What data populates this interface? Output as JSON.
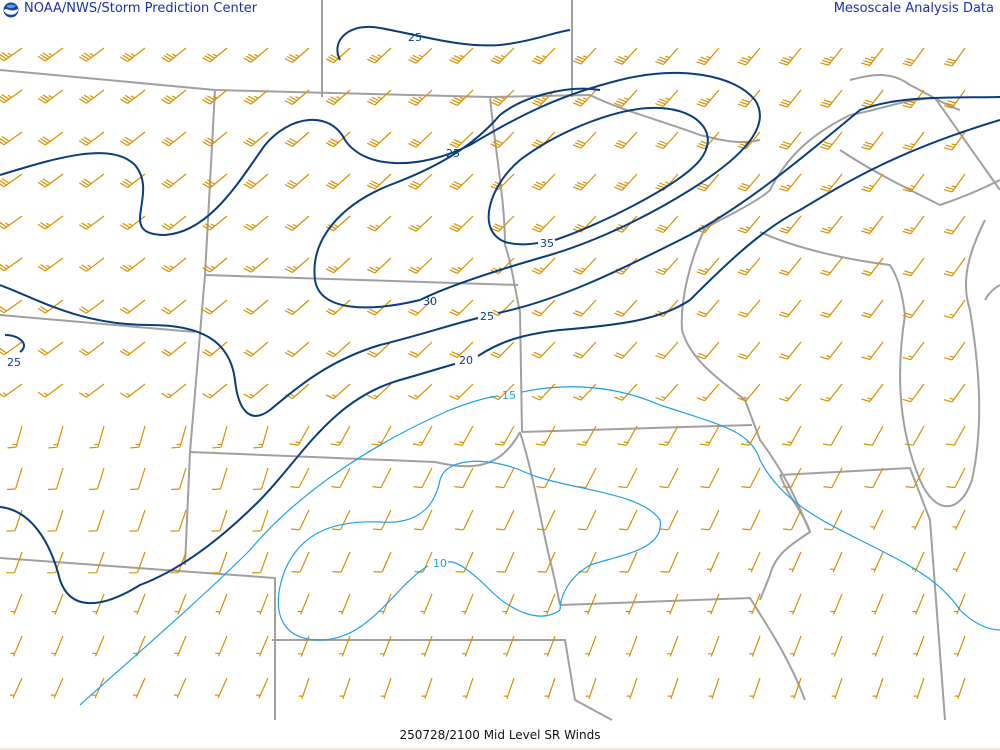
{
  "header": {
    "left_title": "NOAA/NWS/Storm Prediction Center",
    "right_title": "Mesoscale Analysis Data",
    "logo": "noaa-logo"
  },
  "footer": {
    "caption": "250728/2100 Mid Level SR Winds"
  },
  "map": {
    "contour_labels": [
      "25",
      "25",
      "35",
      "30",
      "25",
      "20",
      "15",
      "10",
      "25"
    ],
    "colors": {
      "barbs": "#d89000",
      "strong_isotachs": "#0a3d7a",
      "weak_isotachs": "#1fa0e8",
      "borders": "#a0a0a0",
      "title": "#1a2fb0"
    }
  }
}
